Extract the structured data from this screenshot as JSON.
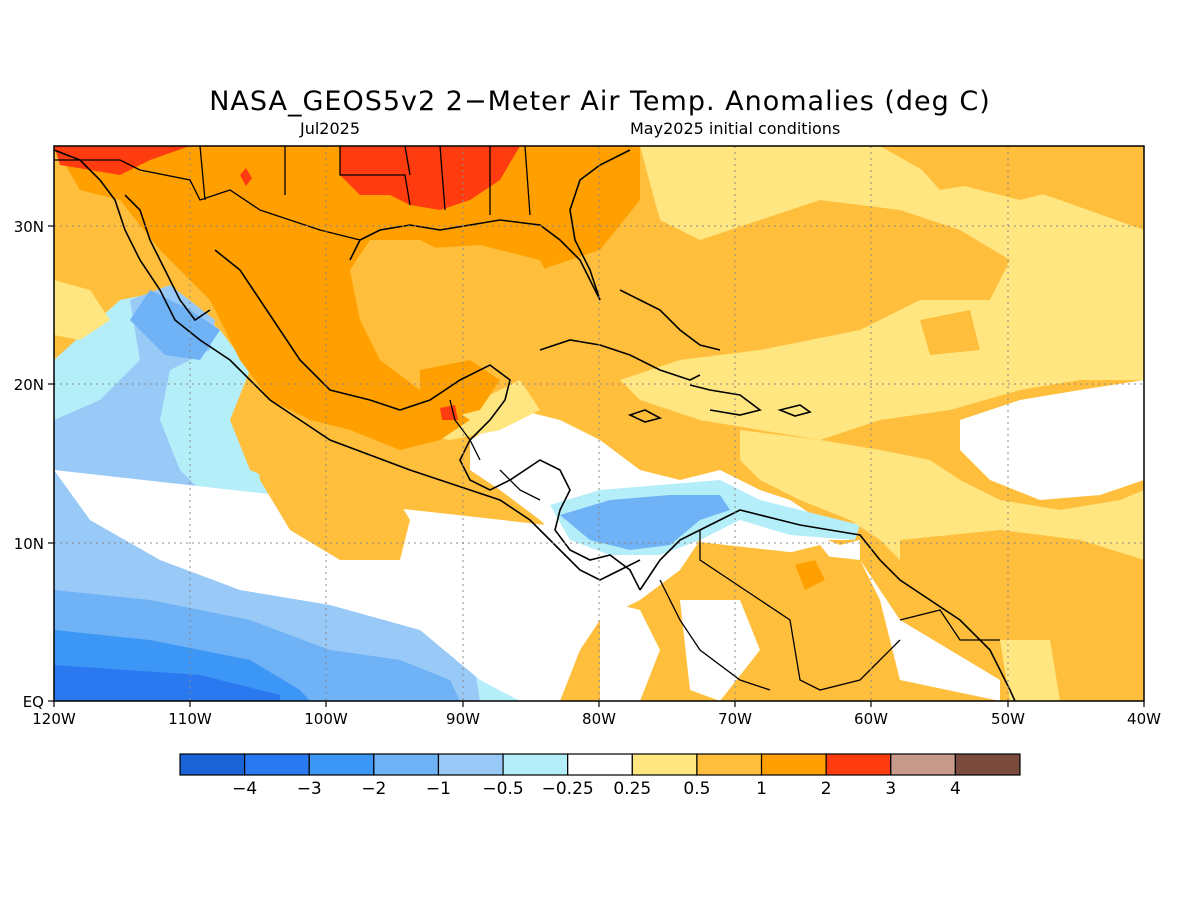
{
  "map": {
    "title": "NASA_GEOS5v2 2−Meter Air Temp. Anomalies (deg C)",
    "subtitle_left": "Jul2025",
    "subtitle_right": "May2025 initial conditions",
    "lon_range": [
      -120,
      -40
    ],
    "lat_range": [
      0,
      35
    ],
    "lon_ticks": [
      "120W",
      "110W",
      "100W",
      "90W",
      "80W",
      "70W",
      "60W",
      "50W",
      "40W"
    ],
    "lat_ticks": [
      "EQ",
      "10N",
      "20N",
      "30N"
    ],
    "gridlines": "dotted"
  },
  "colorbar": {
    "colors": [
      "#1a63d6",
      "#2b79f0",
      "#3c96f5",
      "#6fb2f5",
      "#99c9f7",
      "#b4eef8",
      "#ffffff",
      "#ffe680",
      "#ffbf3d",
      "#ffa000",
      "#ff3c10",
      "#c89a8c",
      "#7a4a3c"
    ],
    "labels": [
      "−4",
      "−3",
      "−2",
      "−1",
      "−0.5",
      "−0.25",
      "0.25",
      "0.5",
      "1",
      "2",
      "3",
      "4"
    ]
  }
}
